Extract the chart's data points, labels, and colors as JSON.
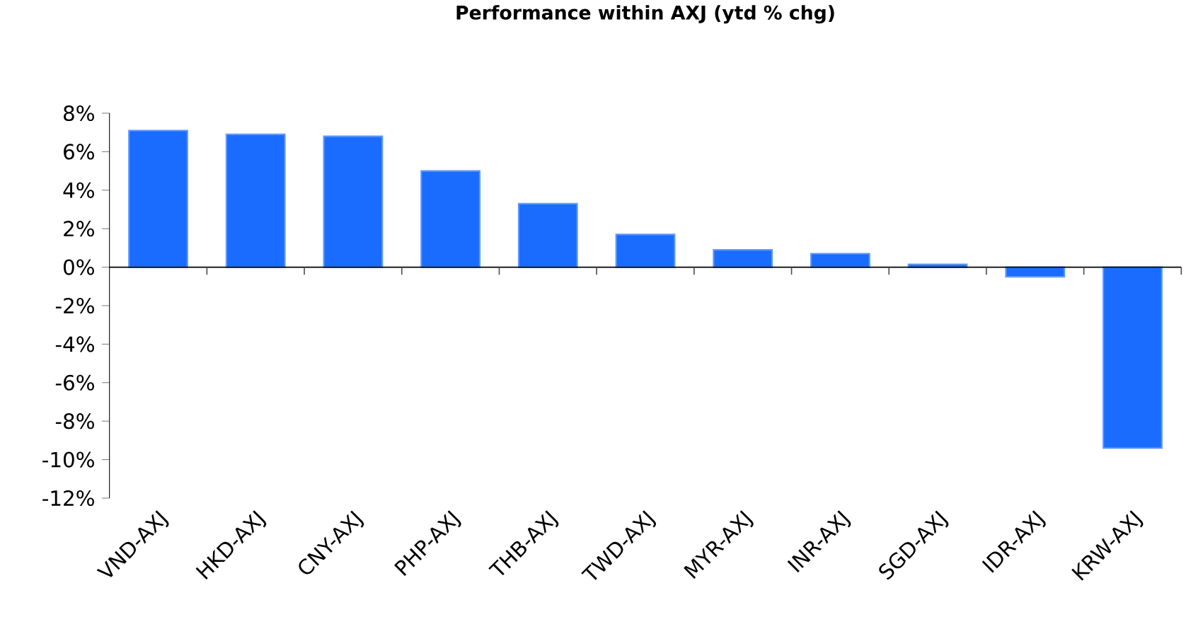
{
  "chart_data": {
    "type": "bar",
    "title": "Performance within AXJ (ytd % chg)",
    "categories": [
      "VND-AXJ",
      "HKD-AXJ",
      "CNY-AXJ",
      "PHP-AXJ",
      "THB-AXJ",
      "TWD-AXJ",
      "MYR-AXJ",
      "INR-AXJ",
      "SGD-AXJ",
      "IDR-AXJ",
      "KRW-AXJ"
    ],
    "values": [
      7.1,
      6.9,
      6.8,
      5.0,
      3.3,
      1.7,
      0.9,
      0.7,
      0.15,
      -0.5,
      -9.4
    ],
    "color": "#1a6cff",
    "ylim": [
      -12,
      8
    ],
    "yticks": [
      {
        "value": -12,
        "label": "-12%"
      },
      {
        "value": -10,
        "label": "-10%"
      },
      {
        "value": -8,
        "label": "-8%"
      },
      {
        "value": -6,
        "label": "-6%"
      },
      {
        "value": -4,
        "label": "-4%"
      },
      {
        "value": -2,
        "label": "-2%"
      },
      {
        "value": 0,
        "label": "0%"
      },
      {
        "value": 2,
        "label": "2%"
      },
      {
        "value": 4,
        "label": "4%"
      },
      {
        "value": 6,
        "label": "6%"
      },
      {
        "value": 8,
        "label": "8%"
      }
    ],
    "data_labels": false
  }
}
